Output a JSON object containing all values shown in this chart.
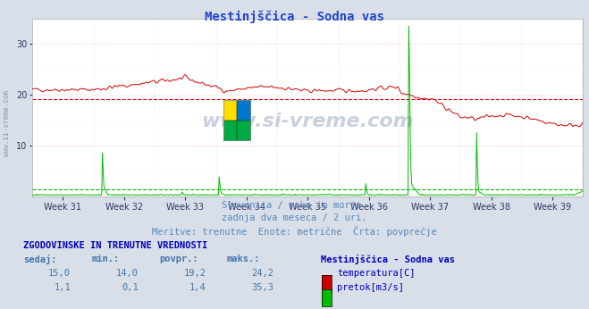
{
  "title": "Mestinjščica - Sodna vas",
  "bg_color": "#d8dfe8",
  "plot_bg_color": "#ffffff",
  "grid_color": "#ffbbbb",
  "grid_color_green": "#bbddbb",
  "temp_color": "#cc0000",
  "flow_color": "#00bb00",
  "avg_temp_color": "#cc0000",
  "avg_flow_color": "#00bb00",
  "x_labels": [
    "Week 31",
    "Week 32",
    "Week 33",
    "Week 34",
    "Week 35",
    "Week 36",
    "Week 37",
    "Week 38",
    "Week 39"
  ],
  "ylim": [
    0,
    35
  ],
  "yticks": [
    10,
    20,
    30
  ],
  "avg_temp": 19.2,
  "avg_flow": 1.4,
  "subtitle1": "Slovenija / reke in morje.",
  "subtitle2": "zadnja dva meseca / 2 uri.",
  "subtitle3": "Meritve: trenutne  Enote: metrične  Črta: povprečje",
  "table_header": "ZGODOVINSKE IN TRENUTNE VREDNOSTI",
  "col_headers": [
    "sedaj:",
    "min.:",
    "povpr.:",
    "maks.:"
  ],
  "row1": [
    "15,0",
    "14,0",
    "19,2",
    "24,2"
  ],
  "row2": [
    "1,1",
    "0,1",
    "1,4",
    "35,3"
  ],
  "legend_title": "Mestinjščica - Sodna vas",
  "legend1": "temperatura[C]",
  "legend2": "pretok[m3/s]",
  "watermark": "www.si-vreme.com",
  "title_color": "#2244cc",
  "subtitle_color": "#5588bb",
  "table_color": "#0000bb",
  "data_color": "#4477aa",
  "side_watermark_color": "#8899aa"
}
